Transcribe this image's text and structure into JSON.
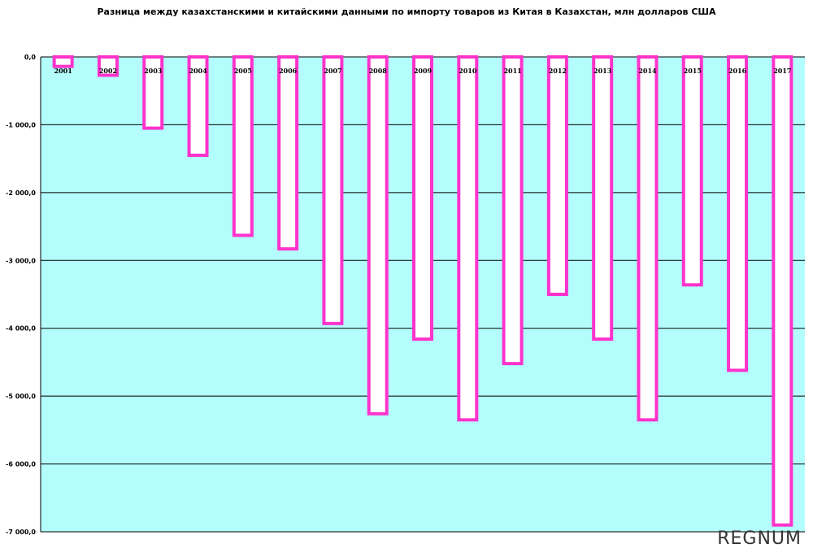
{
  "chart_data": {
    "type": "bar",
    "title": "Разница между казахстанскими и китайскими данными по импорту товаров из Китая в Казахстан, млн долларов США",
    "categories": [
      "2001",
      "2002",
      "2003",
      "2004",
      "2005",
      "2006",
      "2007",
      "2008",
      "2009",
      "2010",
      "2011",
      "2012",
      "2013",
      "2014",
      "2015",
      "2016",
      "2017"
    ],
    "series": [
      {
        "values": [
          -140,
          -270,
          -1050,
          -1450,
          -2630,
          -2830,
          -3930,
          -5260,
          -4160,
          -5350,
          -4520,
          -3500,
          -4160,
          -5350,
          -3360,
          -4620,
          -6900
        ]
      }
    ],
    "ylim": [
      -7000,
      0
    ],
    "yticks": [
      0,
      -1000,
      -2000,
      -3000,
      -4000,
      -5000,
      -6000,
      -7000
    ],
    "ytick_labels": [
      "0,0",
      "-1 000,0",
      "-2 000,0",
      "-3 000,0",
      "-4 000,0",
      "-5 000,0",
      "-6 000,0",
      "-7 000,0"
    ],
    "grid": true,
    "colors": {
      "plot_background": "#b3fdfd",
      "bar_outline": "#ff33cc",
      "bar_fill": "#ffffff",
      "grid": "#000000"
    }
  },
  "watermark": "REGNUM"
}
